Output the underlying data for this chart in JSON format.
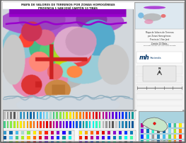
{
  "title_line1": "MAPA DE VALORES DE TERRENOS POR ZONAS HOMOGÉNEAS",
  "title_line2": "PROVINCIA 1 SAN JOSÉ CANTÓN 13 TIBÁS",
  "bg_color": "#ffffff",
  "map_outer_border": "#555555",
  "map_bg": "#dce8f0",
  "grid_color": "#b8c8d8",
  "sidebar_bg": "#f8f8f8",
  "sidebar_border": "#888888",
  "legend_bg": "#f9f9f9",
  "legend_border": "#777777",
  "inset_bg": "#aad3df",
  "costa_rica_fill": "#c8e6c9",
  "tibas_color": "#ff0000",
  "legend_colors": [
    "#bbbbbb",
    "#999999",
    "#777777",
    "#555555",
    "#cccccc",
    "#3399cc",
    "#2288bb",
    "#1177aa",
    "#0066aa",
    "#005599",
    "#22aadd",
    "#44bbee",
    "#66ccff",
    "#88ddee",
    "#aaddcc",
    "#44cc88",
    "#66dd66",
    "#88ee44",
    "#aaee22",
    "#ccee00",
    "#ffee00",
    "#ffcc00",
    "#ffaa00",
    "#ff8800",
    "#ff6600",
    "#ff4400",
    "#ff2200",
    "#ee1111",
    "#dd0000",
    "#cc0044",
    "#bb0088",
    "#aa00aa",
    "#8800cc",
    "#6600dd",
    "#4400ee",
    "#2200ff",
    "#0033ff",
    "#0055dd",
    "#0077bb",
    "#009999",
    "#00bbbb",
    "#00dddd",
    "#00ffee",
    "#22ffcc",
    "#44ffaa"
  ],
  "zone_colors": [
    "#aaaaaa",
    "#bbbbbb",
    "#cccccc",
    "#dddddd",
    "#3399cc",
    "#55aadd",
    "#77bbee",
    "#99ccff",
    "#ee3333",
    "#ff5555",
    "#ff7777",
    "#ffaaaa",
    "#ee66aa",
    "#ff88cc",
    "#ffaaee",
    "#44cc88",
    "#66dd99",
    "#88eeaa",
    "#ffcc00",
    "#ffdd44",
    "#ffee88",
    "#cc44cc",
    "#dd66dd",
    "#ee88ee",
    "#ff8800",
    "#ffaa44",
    "#ffcc88",
    "#00cccc",
    "#22dddd",
    "#44eeee",
    "#8866cc",
    "#aa88dd",
    "#ccaaee"
  ],
  "sidebar_text_color": "#333333",
  "title_color": "#222222"
}
